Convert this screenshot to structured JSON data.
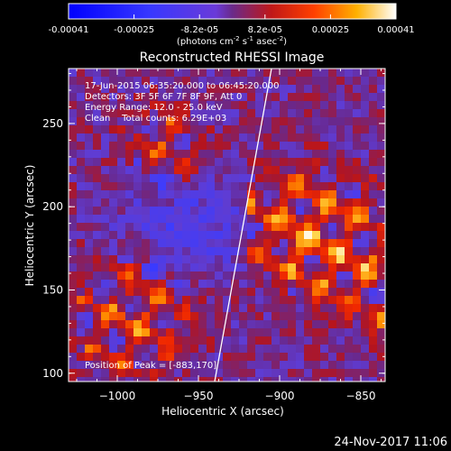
{
  "chart_data": {
    "type": "heatmap",
    "title": "Reconstructed RHESSI Image",
    "colorbar": {
      "ticks": [
        "-0.00041",
        "-0.00025",
        "-8.2e-05",
        "8.2e-05",
        "0.00025",
        "0.00041"
      ],
      "unit_label": "(photons cm",
      "unit_sup1": "-2",
      "unit_mid": " s",
      "unit_sup2": "-1",
      "unit_tail": " asec",
      "unit_sup3": "-2",
      "unit_close": ")",
      "range": [
        -0.00041,
        0.00041
      ]
    },
    "annotations": [
      "17-Jun-2015 06:35:20.000 to 06:45:20.000",
      "Detectors: 3F 5F 6F 7F 8F 9F, Att 0",
      "Energy Range: 12.0 - 25.0 keV",
      "Clean    Total counts: 6.29E+03"
    ],
    "peak_label": "Position of Peak = [-883,170]",
    "peak": [
      -883,
      170
    ],
    "xlabel": "Heliocentric X (arcsec)",
    "ylabel": "Heliocentric Y (arcsec)",
    "xlim": [
      -1030,
      -835
    ],
    "ylim": [
      95,
      283
    ],
    "xticks": [
      {
        "value": -1000,
        "label": "−1000"
      },
      {
        "value": -950,
        "label": "−950"
      },
      {
        "value": -900,
        "label": "−900"
      },
      {
        "value": -850,
        "label": "−850"
      }
    ],
    "yticks": [
      {
        "value": 100,
        "label": "100"
      },
      {
        "value": 150,
        "label": "150"
      },
      {
        "value": 200,
        "label": "200"
      },
      {
        "value": 250,
        "label": "250"
      }
    ],
    "limb_line": [
      [
        -940,
        95
      ],
      [
        -905,
        283
      ]
    ]
  },
  "footer_date": "24-Nov-2017 11:06"
}
